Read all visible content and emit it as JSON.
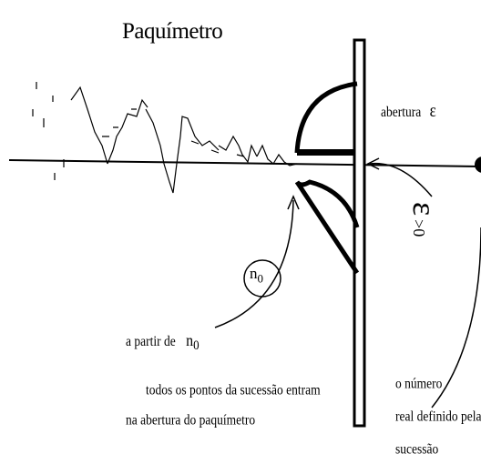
{
  "title": "Paquímetro",
  "labels": {
    "abertura": "abertura",
    "epsilon_symbol": "ε",
    "epsilon_condition_symbol": "ε",
    "epsilon_condition_rest": ">0",
    "n0_circle": "n",
    "n0_circle_sub": "0",
    "a_partir_de": "a partir de",
    "n0_text": "n",
    "n0_text_sub": "0",
    "todos_line": "todos os pontos da sucessão entram",
    "na_abertura_line": "na abertura do paquímetro",
    "o_numero": "o número",
    "real_definido": "real definido pela",
    "sucessao": "sucessão"
  }
}
